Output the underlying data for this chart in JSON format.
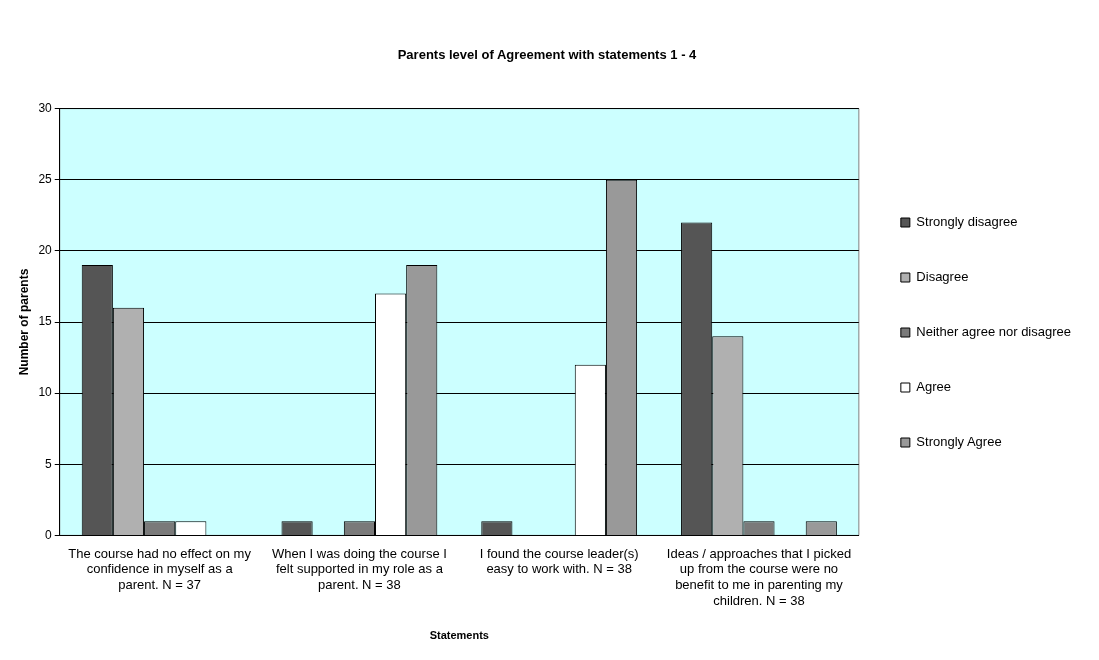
{
  "chart_data": {
    "type": "bar",
    "title": "Parents level of Agreement with statements 1 - 4",
    "xlabel": "Statements",
    "ylabel": "Number of parents",
    "categories": [
      "The course had no effect on my confidence in myself as a parent. N = 37",
      "When I was doing the course I felt supported in my role as a parent. N = 38",
      "I found the course leader(s) easy to work with. N = 38",
      "Ideas / approaches that I picked up from the course were no benefit to me in parenting my children. N = 38"
    ],
    "series": [
      {
        "name": "Strongly disagree",
        "color": "#555555",
        "values": [
          19,
          1,
          1,
          22
        ]
      },
      {
        "name": "Disagree",
        "color": "#b0b0b0",
        "values": [
          16,
          0,
          0,
          14
        ]
      },
      {
        "name": "Neither agree nor disagree",
        "color": "#7a7a7a",
        "values": [
          1,
          1,
          0,
          1
        ]
      },
      {
        "name": "Agree",
        "color": "#ffffff",
        "values": [
          1,
          17,
          12,
          0
        ]
      },
      {
        "name": "Strongly Agree",
        "color": "#999999",
        "values": [
          0,
          19,
          25,
          1
        ]
      }
    ],
    "ylim": [
      0,
      30
    ],
    "yticks": [
      0,
      5,
      10,
      15,
      20,
      25,
      30
    ],
    "grid": "y",
    "legend": "right"
  }
}
